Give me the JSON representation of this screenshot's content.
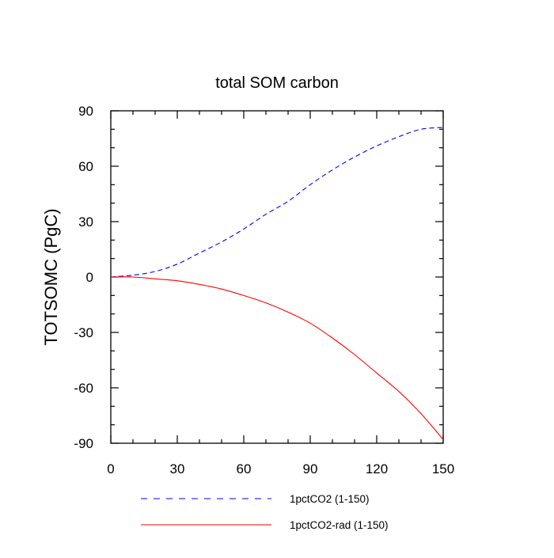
{
  "chart_data": {
    "type": "line",
    "title": "total SOM carbon",
    "xlabel": "",
    "ylabel": "TOTSOMC  (PgC)",
    "xlim": [
      0,
      150
    ],
    "ylim": [
      -90,
      90
    ],
    "xticks": [
      0,
      30,
      60,
      90,
      120,
      150
    ],
    "yticks": [
      -90,
      -60,
      -30,
      0,
      30,
      60,
      90
    ],
    "grid": false,
    "legend_position": "bottom",
    "series": [
      {
        "name": "1pctCO2 (1-150)",
        "color": "#0000ff",
        "style": "dashed",
        "x": [
          0,
          10,
          20,
          30,
          40,
          50,
          60,
          70,
          80,
          90,
          100,
          110,
          120,
          130,
          140,
          150
        ],
        "values": [
          0,
          1,
          3,
          7,
          13,
          19,
          26,
          34,
          41,
          50,
          58,
          65,
          71,
          76,
          80,
          81
        ]
      },
      {
        "name": "1pctCO2-rad (1-150)",
        "color": "#ff0000",
        "style": "solid",
        "x": [
          0,
          10,
          20,
          30,
          40,
          50,
          60,
          70,
          80,
          90,
          100,
          110,
          120,
          130,
          140,
          150
        ],
        "values": [
          0,
          0,
          -1,
          -2,
          -4,
          -6.5,
          -10,
          -14,
          -19,
          -25,
          -33,
          -42,
          -52,
          -62,
          -74,
          -88
        ]
      }
    ]
  }
}
